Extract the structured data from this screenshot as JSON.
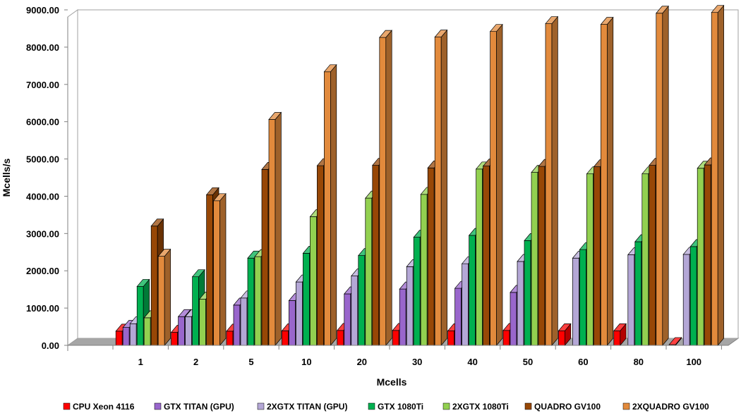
{
  "chart_data": {
    "type": "bar",
    "title": "",
    "xlabel": "Mcells",
    "ylabel": "Mcells/s",
    "ylim": [
      0,
      9000
    ],
    "y_ticks": [
      "0.00",
      "1000.00",
      "2000.00",
      "3000.00",
      "4000.00",
      "5000.00",
      "6000.00",
      "7000.00",
      "8000.00",
      "9000.00"
    ],
    "categories": [
      "1",
      "2",
      "5",
      "10",
      "20",
      "30",
      "40",
      "50",
      "60",
      "80",
      "100"
    ],
    "grid": false,
    "legend_position": "bottom",
    "series": [
      {
        "name": "CPU Xeon 4116",
        "color": "#ff0000",
        "values": [
          380,
          350,
          380,
          390,
          400,
          400,
          390,
          400,
          390,
          390,
          20
        ]
      },
      {
        "name": "GTX TITAN (GPU)",
        "color": "#9966cc",
        "values": [
          480,
          770,
          1080,
          1200,
          1380,
          1510,
          1530,
          1420,
          null,
          null,
          null
        ]
      },
      {
        "name": "2XGTX TITAN (GPU)",
        "color": "#b4a7d6",
        "values": [
          580,
          770,
          1270,
          1700,
          1860,
          2110,
          2190,
          2250,
          2340,
          2430,
          2440
        ]
      },
      {
        "name": "GTX 1080Ti",
        "color": "#00b050",
        "values": [
          1580,
          1840,
          2340,
          2470,
          2410,
          2900,
          2950,
          2810,
          2570,
          2780,
          2650
        ]
      },
      {
        "name": "2XGTX 1080Ti",
        "color": "#92d050",
        "values": [
          740,
          1240,
          2380,
          3450,
          3950,
          4050,
          4730,
          4640,
          4600,
          4600,
          4750
        ]
      },
      {
        "name": "QUADRO GV100",
        "color": "#974706",
        "values": [
          3200,
          4040,
          4720,
          4820,
          4830,
          4760,
          4810,
          4800,
          4790,
          4830,
          4840
        ]
      },
      {
        "name": "2XQUADRO GV100",
        "color": "#e28a3c",
        "values": [
          2390,
          3880,
          6060,
          7340,
          8260,
          8270,
          8420,
          8630,
          8610,
          8910,
          8930
        ]
      }
    ]
  }
}
